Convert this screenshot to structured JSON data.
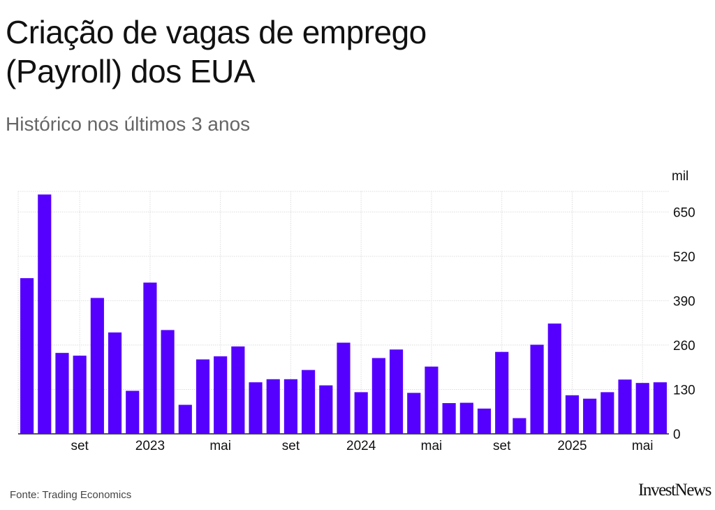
{
  "title": "Criação de vagas de emprego (Payroll) dos EUA",
  "subtitle": "Histórico nos últimos 3 anos",
  "source": "Fonte: Trading Economics",
  "brand": "InvestNews",
  "colors": {
    "bar": "#5500ff",
    "grid": "#dddddd",
    "text": "#111111"
  },
  "chart_data": {
    "type": "bar",
    "unit_label": "mil",
    "ylim": [
      0,
      710
    ],
    "yticks": [
      0,
      130,
      260,
      390,
      520,
      650
    ],
    "y_axis_side": "right",
    "grid": true,
    "x_tick_labels": [
      {
        "index": 3,
        "label": "set"
      },
      {
        "index": 7,
        "label": "2023"
      },
      {
        "index": 11,
        "label": "mai"
      },
      {
        "index": 15,
        "label": "set"
      },
      {
        "index": 19,
        "label": "2024"
      },
      {
        "index": 23,
        "label": "mai"
      },
      {
        "index": 27,
        "label": "set"
      },
      {
        "index": 31,
        "label": "2025"
      },
      {
        "index": 35,
        "label": "mai"
      }
    ],
    "values": [
      456,
      701,
      237,
      229,
      398,
      297,
      126,
      443,
      304,
      85,
      218,
      227,
      256,
      151,
      160,
      160,
      187,
      142,
      267,
      122,
      222,
      247,
      120,
      197,
      90,
      91,
      74,
      240,
      46,
      261,
      323,
      113,
      103,
      122,
      159,
      149,
      151
    ]
  }
}
